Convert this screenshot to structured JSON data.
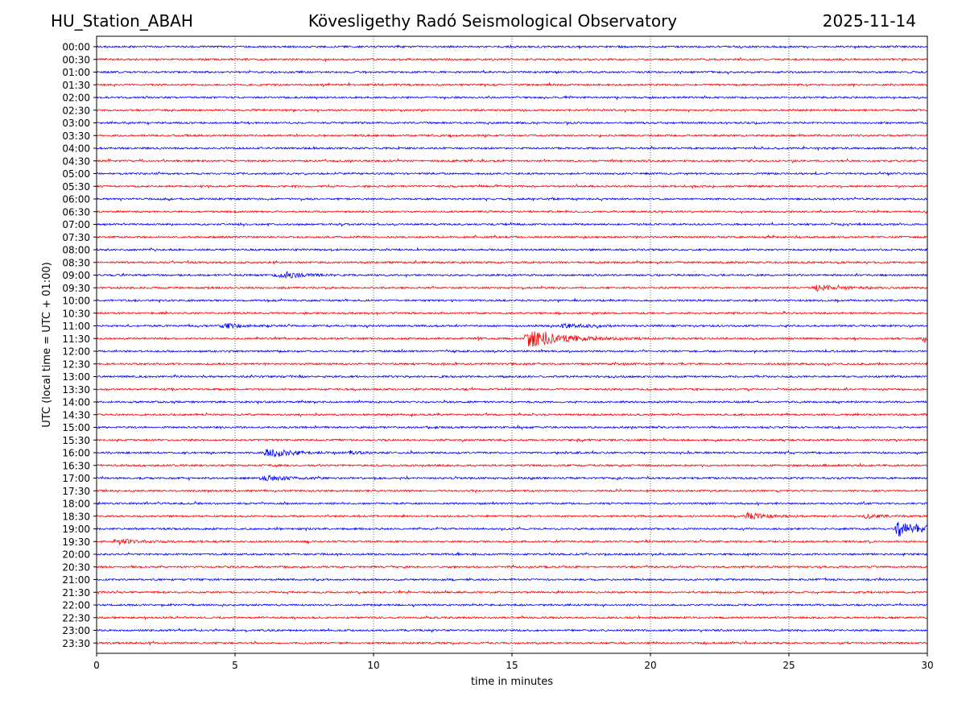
{
  "header": {
    "station": "HU_Station_ABAH",
    "observatory": "Kövesligethy Radó Seismological Observatory",
    "date": "2025-11-14"
  },
  "chart_data": {
    "type": "line",
    "title": "Kövesligethy Radó Seismological Observatory",
    "xlabel": "time in minutes",
    "ylabel": "UTC (local time = UTC + 01:00)",
    "xlim": [
      0,
      30
    ],
    "xticks": [
      0,
      5,
      10,
      15,
      20,
      25,
      30
    ],
    "grid": "vertical dotted lines at 5-minute intervals",
    "trace_colors": [
      "#0000ff",
      "#ff0000"
    ],
    "rows": [
      "00:00",
      "00:30",
      "01:00",
      "01:30",
      "02:00",
      "02:30",
      "03:00",
      "03:30",
      "04:00",
      "04:30",
      "05:00",
      "05:30",
      "06:00",
      "06:30",
      "07:00",
      "07:30",
      "08:00",
      "08:30",
      "09:00",
      "09:30",
      "10:00",
      "10:30",
      "11:00",
      "11:30",
      "12:00",
      "12:30",
      "13:00",
      "13:30",
      "14:00",
      "14:30",
      "15:00",
      "15:30",
      "16:00",
      "16:30",
      "17:00",
      "17:30",
      "18:00",
      "18:30",
      "19:00",
      "19:30",
      "20:00",
      "20:30",
      "21:00",
      "21:30",
      "22:00",
      "22:30",
      "23:00",
      "23:30"
    ],
    "events": [
      {
        "row": "09:00",
        "start_min": 6.3,
        "peak_min": 6.9,
        "amplitude": 3.5,
        "decay_min": 0.6
      },
      {
        "row": "09:30",
        "start_min": 25.8,
        "peak_min": 26.0,
        "amplitude": 3.5,
        "decay_min": 0.7
      },
      {
        "row": "11:00",
        "start_min": 4.3,
        "peak_min": 4.8,
        "amplitude": 2.5,
        "decay_min": 0.6
      },
      {
        "row": "11:00",
        "start_min": 16.5,
        "peak_min": 16.9,
        "amplitude": 2.0,
        "decay_min": 1.0
      },
      {
        "row": "11:30",
        "start_min": 15.4,
        "peak_min": 15.6,
        "amplitude": 11.0,
        "decay_min": 1.2
      },
      {
        "row": "11:30",
        "start_min": 29.7,
        "peak_min": 29.9,
        "amplitude": 4.0,
        "decay_min": 0.4
      },
      {
        "row": "16:00",
        "start_min": 6.0,
        "peak_min": 6.2,
        "amplitude": 6.0,
        "decay_min": 0.8
      },
      {
        "row": "16:00",
        "start_min": 9.0,
        "peak_min": 9.1,
        "amplitude": 2.5,
        "decay_min": 0.3
      },
      {
        "row": "17:00",
        "start_min": 5.8,
        "peak_min": 6.2,
        "amplitude": 3.0,
        "decay_min": 0.7
      },
      {
        "row": "18:30",
        "start_min": 23.4,
        "peak_min": 23.5,
        "amplitude": 4.0,
        "decay_min": 0.6
      },
      {
        "row": "18:30",
        "start_min": 27.6,
        "peak_min": 27.8,
        "amplitude": 2.5,
        "decay_min": 0.5
      },
      {
        "row": "19:00",
        "start_min": 28.8,
        "peak_min": 28.95,
        "amplitude": 9.0,
        "decay_min": 1.0
      },
      {
        "row": "19:30",
        "start_min": 0.5,
        "peak_min": 0.8,
        "amplitude": 3.0,
        "decay_min": 0.8
      }
    ]
  }
}
